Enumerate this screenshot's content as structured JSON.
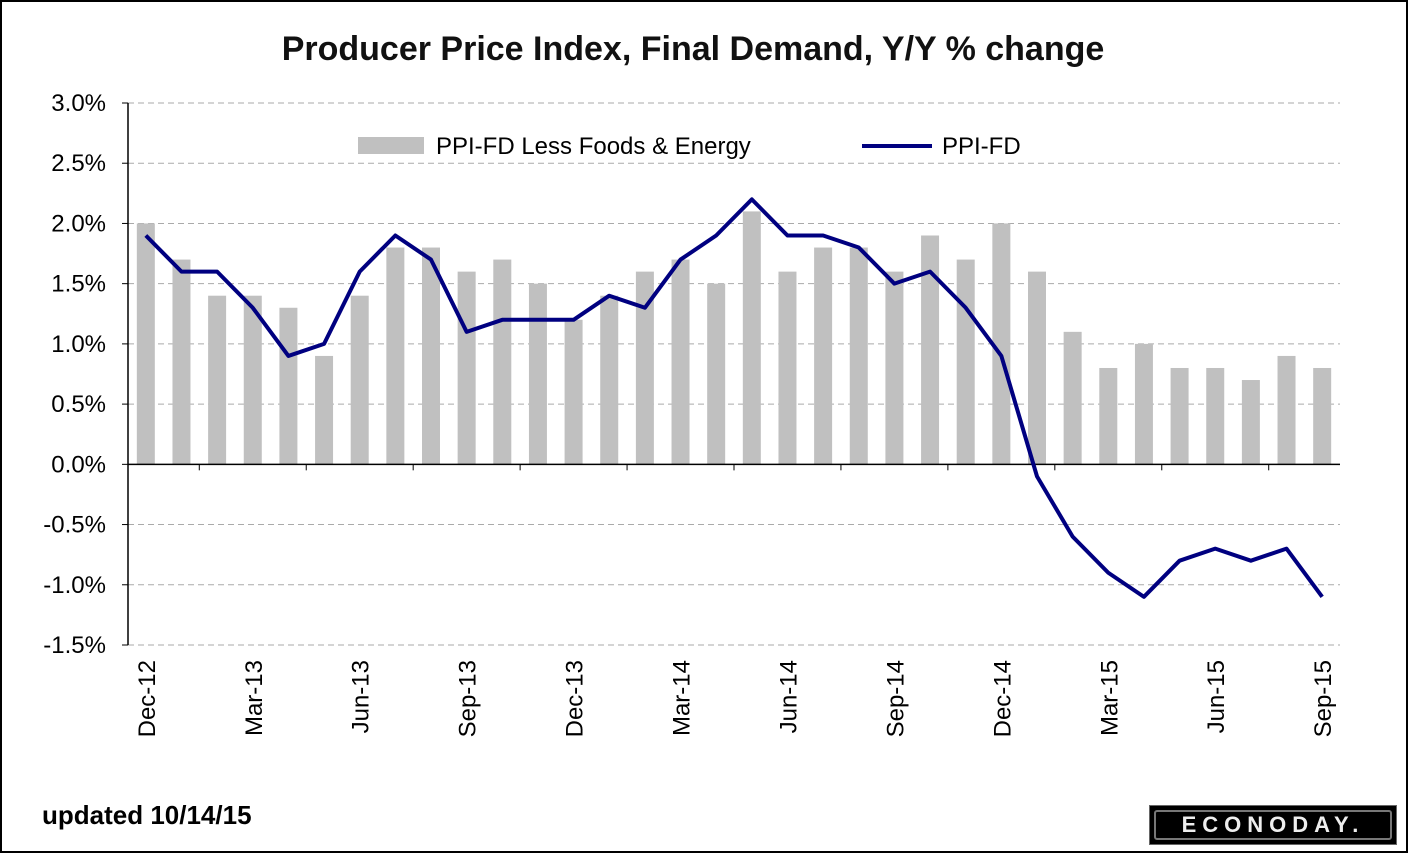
{
  "chart_data": {
    "type": "bar",
    "title": "Producer Price Index, Final Demand, Y/Y % change",
    "xlabel": "",
    "ylabel": "",
    "ylim": [
      -1.5,
      3.0
    ],
    "yticks": [
      "3.0%",
      "2.5%",
      "2.0%",
      "1.5%",
      "1.0%",
      "0.5%",
      "0.0%",
      "-0.5%",
      "-1.0%",
      "-1.5%"
    ],
    "ytick_values": [
      3.0,
      2.5,
      2.0,
      1.5,
      1.0,
      0.5,
      0.0,
      -0.5,
      -1.0,
      -1.5
    ],
    "grid": true,
    "legend_placement": "top",
    "categories": [
      "Dec-12",
      "Jan-13",
      "Feb-13",
      "Mar-13",
      "Apr-13",
      "May-13",
      "Jun-13",
      "Jul-13",
      "Aug-13",
      "Sep-13",
      "Oct-13",
      "Nov-13",
      "Dec-13",
      "Jan-14",
      "Feb-14",
      "Mar-14",
      "Apr-14",
      "May-14",
      "Jun-14",
      "Jul-14",
      "Aug-14",
      "Sep-14",
      "Oct-14",
      "Nov-14",
      "Dec-14",
      "Jan-15",
      "Feb-15",
      "Mar-15",
      "Apr-15",
      "May-15",
      "Jun-15",
      "Jul-15",
      "Aug-15",
      "Sep-15"
    ],
    "xtick_labels": [
      "Dec-12",
      "Mar-13",
      "Jun-13",
      "Sep-13",
      "Dec-13",
      "Mar-14",
      "Jun-14",
      "Sep-14",
      "Dec-14",
      "Mar-15",
      "Jun-15",
      "Sep-15"
    ],
    "series": [
      {
        "name": "PPI-FD Less Foods & Energy",
        "type": "bar",
        "color": "#c0c0c0",
        "values": [
          2.0,
          1.7,
          1.4,
          1.4,
          1.3,
          0.9,
          1.4,
          1.8,
          1.8,
          1.6,
          1.7,
          1.5,
          1.2,
          1.4,
          1.6,
          1.7,
          1.5,
          2.1,
          1.6,
          1.8,
          1.8,
          1.6,
          1.9,
          1.7,
          2.0,
          1.6,
          1.1,
          0.8,
          1.0,
          0.8,
          0.8,
          0.7,
          0.9,
          0.8
        ]
      },
      {
        "name": "PPI-FD",
        "type": "line",
        "color": "#000080",
        "values": [
          1.9,
          1.6,
          1.6,
          1.3,
          0.9,
          1.0,
          1.6,
          1.9,
          1.7,
          1.1,
          1.2,
          1.2,
          1.2,
          1.4,
          1.3,
          1.7,
          1.9,
          2.2,
          1.9,
          1.9,
          1.8,
          1.5,
          1.6,
          1.3,
          0.9,
          -0.1,
          -0.6,
          -0.9,
          -1.1,
          -0.8,
          -0.7,
          -0.8,
          -0.7,
          -1.1
        ]
      }
    ]
  },
  "footer": {
    "updated": "updated 10/14/15",
    "logo": "ECONODAY."
  }
}
